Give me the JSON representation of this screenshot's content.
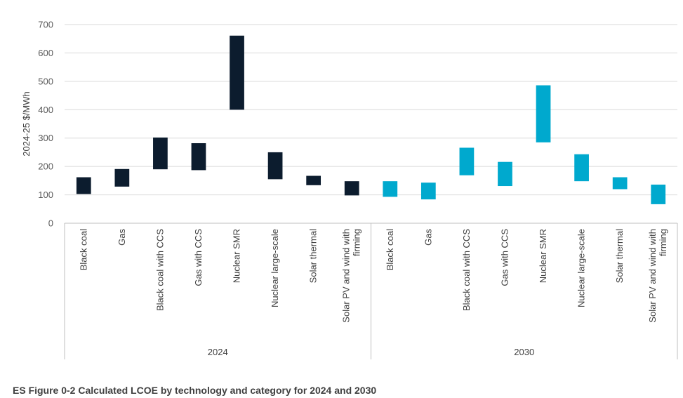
{
  "chart_data": {
    "type": "floating-bar",
    "ylabel": "2024-25 $/MWh",
    "ylim": [
      0,
      700
    ],
    "yticks": [
      0,
      100,
      200,
      300,
      400,
      500,
      600,
      700
    ],
    "grid": true,
    "groups": [
      {
        "name": "2024",
        "color": "#0c1c2e",
        "categories": [
          [
            "Black coal"
          ],
          [
            "Gas"
          ],
          [
            "Black coal with CCS"
          ],
          [
            "Gas with CCS"
          ],
          [
            "Nuclear SMR"
          ],
          [
            "Nuclear large-scale"
          ],
          [
            "Solar thermal"
          ],
          [
            "Solar PV and wind with",
            "firming"
          ]
        ],
        "low": [
          103,
          129,
          190,
          187,
          400,
          155,
          134,
          98
        ],
        "high": [
          162,
          191,
          302,
          282,
          661,
          250,
          167,
          148
        ]
      },
      {
        "name": "2030",
        "color": "#00a9ce",
        "categories": [
          [
            "Black coal"
          ],
          [
            "Gas"
          ],
          [
            "Black coal with CCS"
          ],
          [
            "Gas with CCS"
          ],
          [
            "Nuclear SMR"
          ],
          [
            "Nuclear large-scale"
          ],
          [
            "Solar thermal"
          ],
          [
            "Solar PV and wind with",
            "firming"
          ]
        ],
        "low": [
          93,
          84,
          169,
          131,
          285,
          148,
          120,
          67
        ],
        "high": [
          148,
          143,
          266,
          216,
          486,
          243,
          162,
          136
        ]
      }
    ]
  },
  "caption": "ES Figure 0-2 Calculated LCOE by technology and category for 2024 and 2030"
}
